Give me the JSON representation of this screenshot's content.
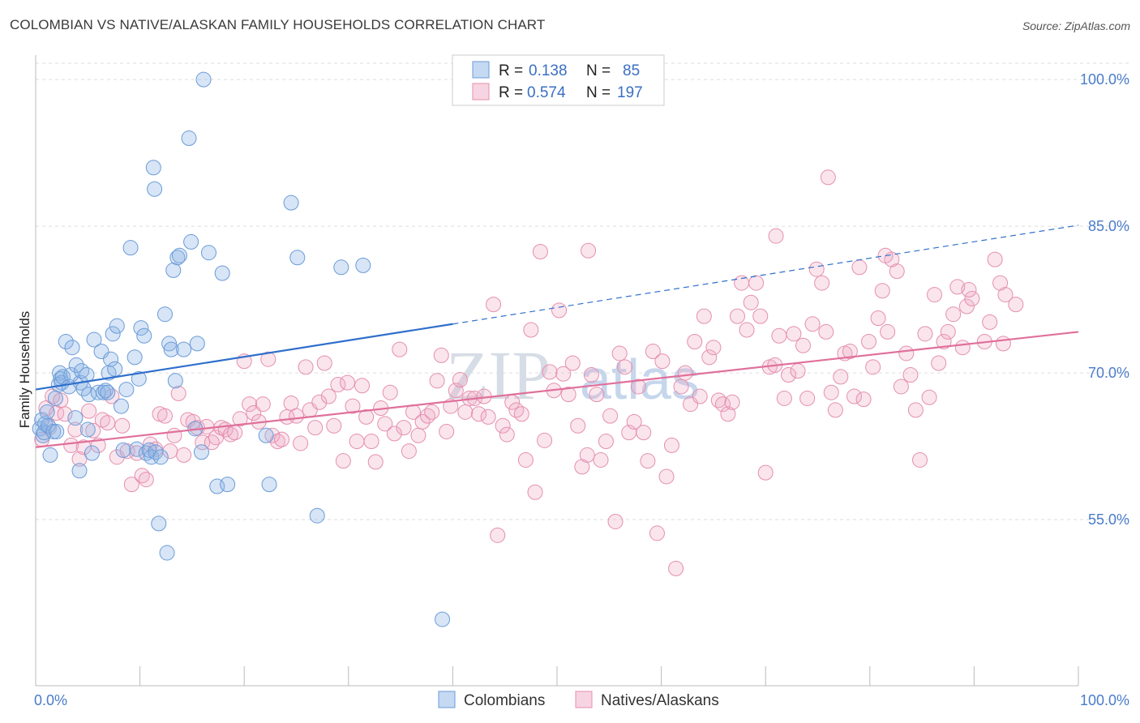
{
  "title": "COLOMBIAN VS NATIVE/ALASKAN FAMILY HOUSEHOLDS CORRELATION CHART",
  "source": "Source: ZipAtlas.com",
  "watermark": "ZIP",
  "watermark_atlas": "atlas",
  "colors": {
    "blue": "#6b9bd8",
    "blue_fill": "rgba(140,180,230,0.35)",
    "blue_line": "#2f6fcc",
    "pink": "#e58fae",
    "pink_fill": "rgba(240,170,195,0.30)",
    "pink_line": "#e0709a",
    "grid": "#dedede",
    "tick": "#4a7cc9"
  },
  "legend": {
    "rows": [
      {
        "r_label": "R =",
        "r_value": "0.138",
        "n_label": "N =",
        "n_value": "85"
      },
      {
        "r_label": "R =",
        "r_value": "0.574",
        "n_label": "N =",
        "n_value": "197"
      }
    ]
  },
  "chart_data": {
    "type": "scatter",
    "title": "COLOMBIAN VS NATIVE/ALASKAN FAMILY HOUSEHOLDS CORRELATION CHART",
    "xlabel": "",
    "ylabel": "Family Households",
    "xlim": [
      0,
      100
    ],
    "ylim": [
      40,
      102.5
    ],
    "x_tick_labels": [
      "0.0%",
      "100.0%"
    ],
    "y_ticks": [
      55,
      70,
      85,
      100
    ],
    "y_tick_labels": [
      "55.0%",
      "70.0%",
      "85.0%",
      "100.0%"
    ],
    "grid": true,
    "legend_position": "top-center",
    "series": [
      {
        "name": "Colombians",
        "color": "#6b9bd8",
        "R": 0.138,
        "N": 85,
        "trend": {
          "x": [
            0,
            40
          ],
          "y": [
            68.3,
            75.0
          ],
          "dashed_to": [
            100,
            85.1
          ]
        },
        "points": [
          [
            0.4,
            64.3
          ],
          [
            0.6,
            65.2
          ],
          [
            0.7,
            63.6
          ],
          [
            0.8,
            63.9
          ],
          [
            0.9,
            64.8
          ],
          [
            1.1,
            66.0
          ],
          [
            1.2,
            64.6
          ],
          [
            1.4,
            61.6
          ],
          [
            1.7,
            64.0
          ],
          [
            1.9,
            67.4
          ],
          [
            2.2,
            68.8
          ],
          [
            2.3,
            70.0
          ],
          [
            2.4,
            69.4
          ],
          [
            2.5,
            69.0
          ],
          [
            2.6,
            69.6
          ],
          [
            2.9,
            73.2
          ],
          [
            3.2,
            68.6
          ],
          [
            3.4,
            69.8
          ],
          [
            3.5,
            72.6
          ],
          [
            3.8,
            65.4
          ],
          [
            3.9,
            70.8
          ],
          [
            4.2,
            60.0
          ],
          [
            4.3,
            69.0
          ],
          [
            4.4,
            70.2
          ],
          [
            4.6,
            68.4
          ],
          [
            4.9,
            69.8
          ],
          [
            5.1,
            67.8
          ],
          [
            5.4,
            61.8
          ],
          [
            5.6,
            73.4
          ],
          [
            6.0,
            68.0
          ],
          [
            6.3,
            72.2
          ],
          [
            6.5,
            68.0
          ],
          [
            6.7,
            68.2
          ],
          [
            6.9,
            68.0
          ],
          [
            7.0,
            70.0
          ],
          [
            7.2,
            71.4
          ],
          [
            7.4,
            74.0
          ],
          [
            7.6,
            70.4
          ],
          [
            7.8,
            74.8
          ],
          [
            8.2,
            66.6
          ],
          [
            8.4,
            62.1
          ],
          [
            8.7,
            68.3
          ],
          [
            9.1,
            82.8
          ],
          [
            9.5,
            71.6
          ],
          [
            9.7,
            62.2
          ],
          [
            9.9,
            69.4
          ],
          [
            10.1,
            74.6
          ],
          [
            10.4,
            73.8
          ],
          [
            10.6,
            61.8
          ],
          [
            10.9,
            62.1
          ],
          [
            11.1,
            61.4
          ],
          [
            11.3,
            91.0
          ],
          [
            11.4,
            88.8
          ],
          [
            11.5,
            61.9
          ],
          [
            11.8,
            54.6
          ],
          [
            12.0,
            61.4
          ],
          [
            12.4,
            76.0
          ],
          [
            12.6,
            51.6
          ],
          [
            12.8,
            73.0
          ],
          [
            13.0,
            72.4
          ],
          [
            13.2,
            80.5
          ],
          [
            13.4,
            69.2
          ],
          [
            13.6,
            81.8
          ],
          [
            13.8,
            82.0
          ],
          [
            14.2,
            72.4
          ],
          [
            14.7,
            94.0
          ],
          [
            14.9,
            83.4
          ],
          [
            15.3,
            64.3
          ],
          [
            15.5,
            73.0
          ],
          [
            15.9,
            61.9
          ],
          [
            16.1,
            100.0
          ],
          [
            16.6,
            82.3
          ],
          [
            17.4,
            58.4
          ],
          [
            17.9,
            80.2
          ],
          [
            18.4,
            58.6
          ],
          [
            22.4,
            58.6
          ],
          [
            22.1,
            63.6
          ],
          [
            24.5,
            87.4
          ],
          [
            25.1,
            81.8
          ],
          [
            27.0,
            55.4
          ],
          [
            29.3,
            80.8
          ],
          [
            31.4,
            81.0
          ],
          [
            39.0,
            44.8
          ],
          [
            5.0,
            64.2
          ],
          [
            2.0,
            64.0
          ]
        ]
      },
      {
        "name": "Natives/Alaskans",
        "color": "#e58fae",
        "R": 0.574,
        "N": 197,
        "trend": {
          "x": [
            0,
            100
          ],
          "y": [
            62.4,
            74.2
          ]
        },
        "points": [
          [
            0.6,
            63.2
          ],
          [
            1.0,
            66.4
          ],
          [
            1.3,
            64.4
          ],
          [
            1.6,
            67.6
          ],
          [
            2.0,
            65.9
          ],
          [
            2.4,
            67.2
          ],
          [
            2.8,
            65.8
          ],
          [
            3.4,
            62.6
          ],
          [
            3.8,
            64.2
          ],
          [
            4.2,
            61.2
          ],
          [
            4.6,
            62.4
          ],
          [
            5.1,
            66.1
          ],
          [
            5.5,
            64.1
          ],
          [
            6.0,
            62.6
          ],
          [
            6.4,
            65.2
          ],
          [
            6.9,
            64.9
          ],
          [
            7.3,
            67.6
          ],
          [
            7.8,
            61.4
          ],
          [
            8.3,
            64.6
          ],
          [
            8.8,
            62.0
          ],
          [
            9.2,
            58.6
          ],
          [
            9.7,
            61.8
          ],
          [
            10.2,
            59.5
          ],
          [
            10.6,
            59.1
          ],
          [
            11.0,
            62.7
          ],
          [
            11.5,
            62.2
          ],
          [
            11.9,
            65.8
          ],
          [
            12.4,
            65.6
          ],
          [
            12.9,
            62.0
          ],
          [
            13.3,
            63.6
          ],
          [
            13.7,
            67.9
          ],
          [
            14.2,
            61.6
          ],
          [
            14.6,
            65.2
          ],
          [
            15.1,
            65.0
          ],
          [
            15.5,
            64.4
          ],
          [
            16.0,
            62.9
          ],
          [
            16.4,
            64.5
          ],
          [
            16.9,
            62.9
          ],
          [
            17.3,
            63.4
          ],
          [
            17.8,
            64.4
          ],
          [
            18.2,
            64.2
          ],
          [
            18.7,
            63.7
          ],
          [
            19.1,
            63.9
          ],
          [
            19.6,
            65.3
          ],
          [
            20.0,
            71.2
          ],
          [
            20.5,
            66.8
          ],
          [
            20.9,
            65.9
          ],
          [
            21.4,
            65.0
          ],
          [
            21.8,
            66.8
          ],
          [
            22.3,
            71.4
          ],
          [
            22.7,
            63.6
          ],
          [
            23.2,
            63.0
          ],
          [
            23.6,
            63.2
          ],
          [
            24.1,
            65.5
          ],
          [
            24.5,
            66.9
          ],
          [
            25.0,
            65.6
          ],
          [
            25.4,
            62.8
          ],
          [
            25.9,
            70.6
          ],
          [
            26.3,
            66.2
          ],
          [
            26.8,
            64.4
          ],
          [
            27.2,
            67.0
          ],
          [
            27.7,
            71.0
          ],
          [
            28.1,
            67.6
          ],
          [
            28.6,
            64.6
          ],
          [
            29.0,
            68.8
          ],
          [
            29.5,
            61.0
          ],
          [
            29.9,
            69.0
          ],
          [
            30.4,
            66.6
          ],
          [
            30.8,
            63.0
          ],
          [
            31.3,
            68.7
          ],
          [
            31.7,
            65.5
          ],
          [
            32.2,
            63.0
          ],
          [
            32.6,
            60.9
          ],
          [
            33.1,
            66.4
          ],
          [
            33.5,
            64.8
          ],
          [
            34.0,
            68.0
          ],
          [
            34.4,
            63.8
          ],
          [
            34.9,
            72.4
          ],
          [
            35.3,
            64.4
          ],
          [
            35.8,
            62.0
          ],
          [
            36.2,
            66.0
          ],
          [
            36.7,
            63.6
          ],
          [
            37.1,
            65.0
          ],
          [
            37.6,
            65.6
          ],
          [
            38.0,
            66.0
          ],
          [
            38.5,
            69.2
          ],
          [
            38.9,
            71.8
          ],
          [
            39.4,
            64.0
          ],
          [
            39.8,
            66.6
          ],
          [
            40.3,
            68.2
          ],
          [
            40.7,
            69.3
          ],
          [
            41.2,
            66.0
          ],
          [
            41.6,
            67.4
          ],
          [
            42.1,
            67.4
          ],
          [
            42.5,
            65.8
          ],
          [
            43.0,
            67.6
          ],
          [
            43.4,
            65.5
          ],
          [
            43.9,
            77.0
          ],
          [
            44.3,
            53.4
          ],
          [
            44.8,
            64.6
          ],
          [
            45.2,
            63.7
          ],
          [
            45.7,
            67.0
          ],
          [
            46.1,
            66.2
          ],
          [
            46.6,
            65.8
          ],
          [
            47.0,
            61.1
          ],
          [
            47.5,
            74.4
          ],
          [
            47.9,
            57.8
          ],
          [
            48.4,
            82.4
          ],
          [
            48.8,
            63.1
          ],
          [
            49.3,
            70.1
          ],
          [
            49.7,
            68.2
          ],
          [
            50.2,
            76.4
          ],
          [
            50.6,
            69.9
          ],
          [
            51.1,
            67.8
          ],
          [
            51.5,
            71.0
          ],
          [
            52.0,
            64.6
          ],
          [
            52.4,
            60.4
          ],
          [
            52.9,
            61.6
          ],
          [
            53.3,
            69.8
          ],
          [
            53.8,
            67.8
          ],
          [
            54.2,
            61.1
          ],
          [
            54.7,
            63.0
          ],
          [
            55.1,
            65.6
          ],
          [
            55.6,
            54.8
          ],
          [
            56.0,
            72.0
          ],
          [
            56.5,
            70.6
          ],
          [
            56.9,
            63.9
          ],
          [
            57.4,
            65.0
          ],
          [
            57.8,
            68.6
          ],
          [
            58.3,
            63.9
          ],
          [
            58.7,
            61.0
          ],
          [
            59.2,
            72.2
          ],
          [
            59.6,
            53.6
          ],
          [
            60.1,
            71.2
          ],
          [
            60.5,
            59.4
          ],
          [
            61.0,
            62.6
          ],
          [
            61.4,
            50.0
          ],
          [
            61.9,
            68.6
          ],
          [
            62.3,
            70.0
          ],
          [
            62.8,
            66.8
          ],
          [
            63.2,
            73.2
          ],
          [
            63.7,
            67.6
          ],
          [
            64.1,
            75.8
          ],
          [
            64.6,
            71.6
          ],
          [
            65.0,
            72.6
          ],
          [
            65.5,
            67.2
          ],
          [
            65.9,
            66.8
          ],
          [
            66.4,
            65.8
          ],
          [
            66.8,
            67.0
          ],
          [
            67.3,
            75.8
          ],
          [
            67.7,
            79.2
          ],
          [
            68.2,
            74.4
          ],
          [
            68.6,
            77.2
          ],
          [
            69.1,
            79.2
          ],
          [
            69.5,
            75.8
          ],
          [
            70.0,
            59.8
          ],
          [
            70.4,
            70.6
          ],
          [
            70.9,
            70.8
          ],
          [
            71.3,
            73.8
          ],
          [
            71.8,
            67.4
          ],
          [
            72.2,
            69.8
          ],
          [
            72.7,
            74.0
          ],
          [
            73.1,
            70.2
          ],
          [
            73.6,
            72.8
          ],
          [
            74.0,
            67.4
          ],
          [
            74.5,
            75.0
          ],
          [
            74.9,
            80.6
          ],
          [
            75.4,
            79.2
          ],
          [
            75.8,
            74.2
          ],
          [
            76.3,
            68.0
          ],
          [
            76.7,
            66.2
          ],
          [
            77.2,
            69.6
          ],
          [
            77.6,
            72.0
          ],
          [
            78.1,
            72.2
          ],
          [
            78.5,
            67.6
          ],
          [
            79.0,
            80.8
          ],
          [
            79.4,
            67.3
          ],
          [
            79.9,
            73.2
          ],
          [
            80.3,
            70.6
          ],
          [
            80.8,
            75.6
          ],
          [
            81.2,
            78.4
          ],
          [
            81.7,
            74.2
          ],
          [
            82.1,
            81.6
          ],
          [
            82.6,
            80.4
          ],
          [
            83.0,
            68.6
          ],
          [
            83.5,
            72.0
          ],
          [
            83.9,
            69.8
          ],
          [
            84.4,
            66.2
          ],
          [
            84.8,
            61.1
          ],
          [
            85.3,
            74.0
          ],
          [
            85.7,
            67.5
          ],
          [
            86.2,
            78.0
          ],
          [
            86.6,
            71.0
          ],
          [
            87.1,
            73.2
          ],
          [
            87.5,
            74.2
          ],
          [
            88.0,
            76.0
          ],
          [
            88.4,
            78.8
          ],
          [
            88.9,
            72.6
          ],
          [
            89.3,
            76.8
          ],
          [
            89.8,
            77.6
          ],
          [
            76.0,
            90.0
          ],
          [
            91.0,
            73.2
          ],
          [
            92.0,
            81.6
          ],
          [
            92.5,
            79.2
          ],
          [
            93.0,
            78.0
          ],
          [
            94.0,
            77.0
          ],
          [
            91.5,
            75.2
          ],
          [
            89.5,
            78.5
          ],
          [
            92.8,
            73.0
          ],
          [
            81.5,
            82.0
          ],
          [
            53.0,
            82.5
          ],
          [
            71.0,
            84.0
          ]
        ]
      }
    ]
  },
  "bottom_legend": [
    {
      "label": "Colombians"
    },
    {
      "label": "Natives/Alaskans"
    }
  ]
}
